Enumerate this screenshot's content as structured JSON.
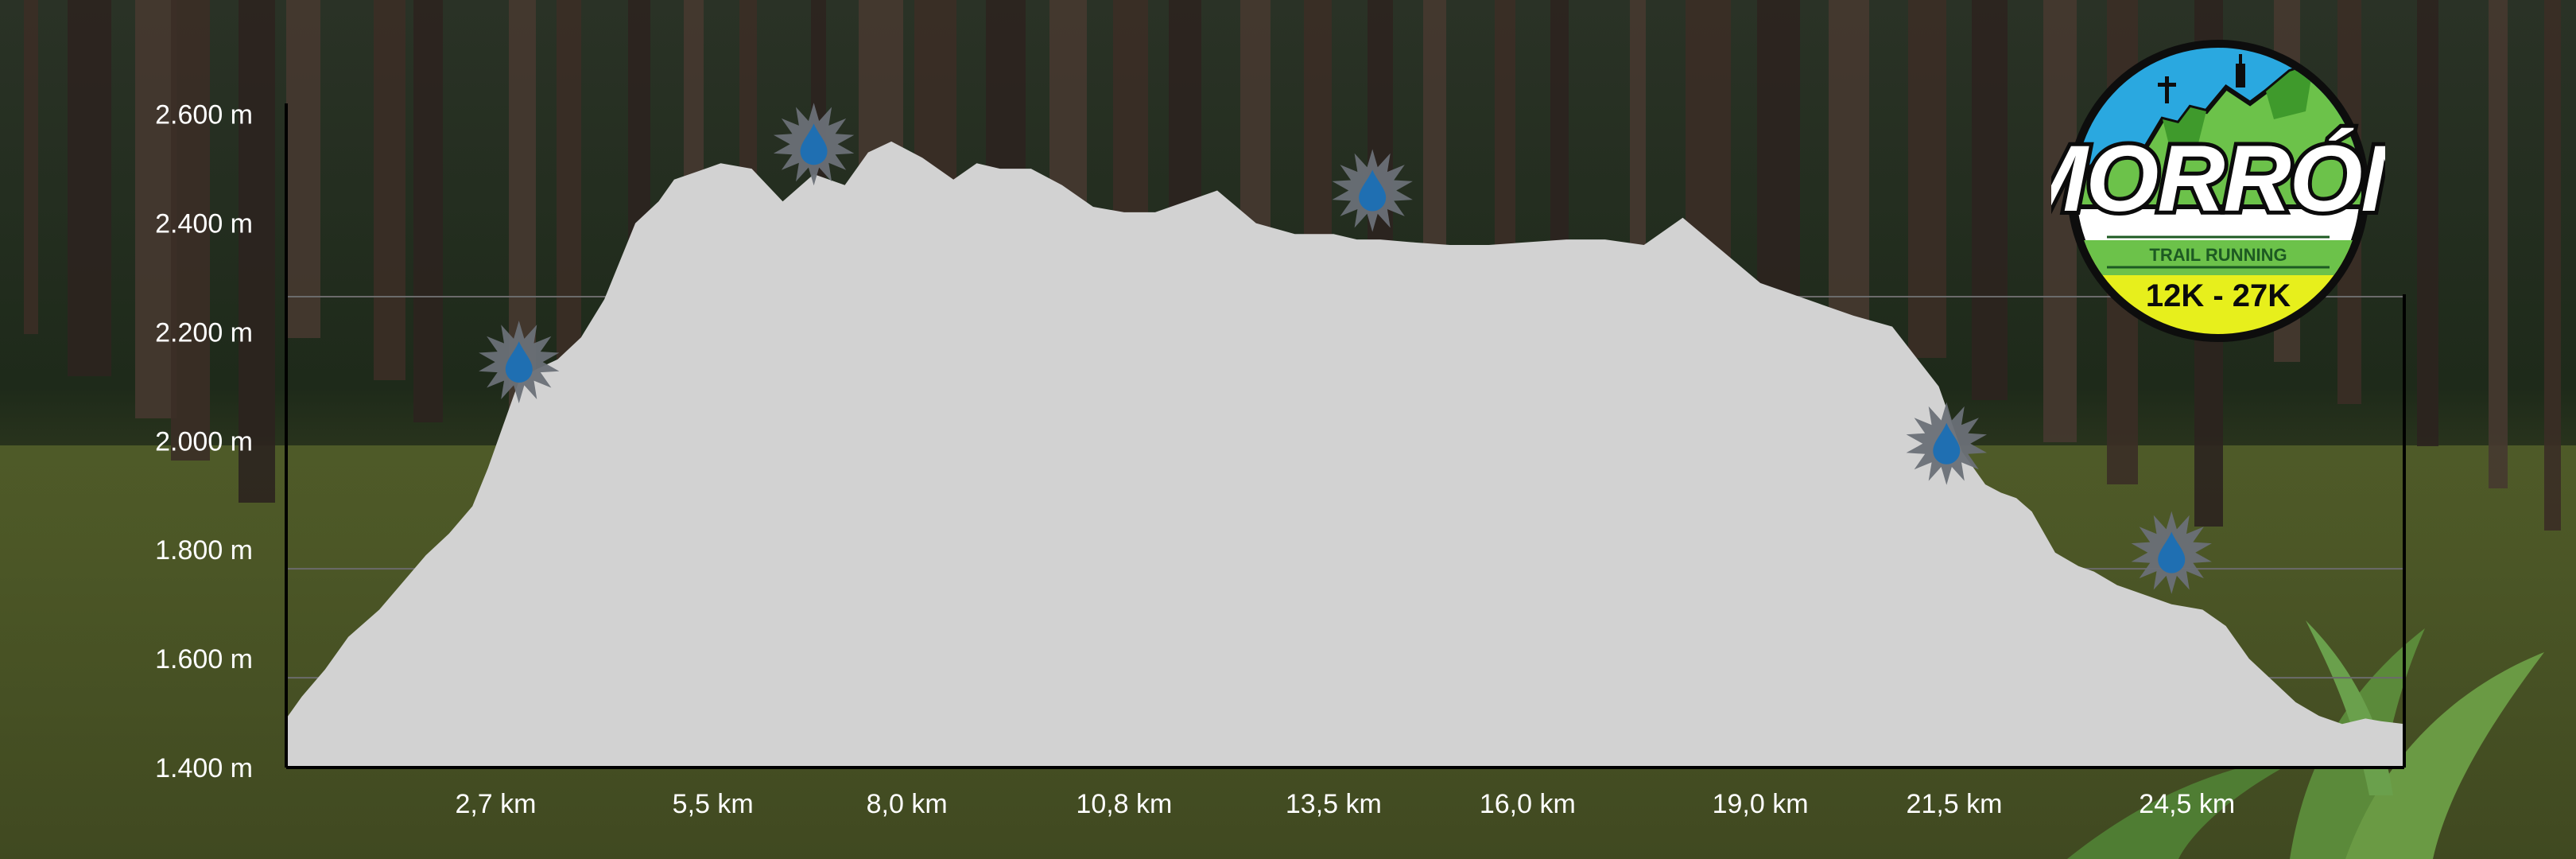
{
  "background": {
    "description_colors": {
      "sky_dark": "#1c2418",
      "moss": "#5f6d2a",
      "trunk": "#3a2c24"
    }
  },
  "colors": {
    "profile_fill": "#d2d2d2",
    "axis": "#000000",
    "gridline": "#6b6b6b",
    "label_text": "#ffffff",
    "water_drop": "#1f6fb2",
    "star_burst": "#6a7077"
  },
  "logo": {
    "title": "MORRÓN",
    "subtitle": "TRAIL RUNNING",
    "distances": "12K - 27K",
    "ring_color": "#0d0d0d",
    "sky_color": "#2aa8e0",
    "mountain_color": "#6cc24a",
    "band_color": "#e7ef1c"
  },
  "chart_data": {
    "type": "area",
    "title": "",
    "xlabel": "",
    "ylabel": "",
    "xlim": [
      0,
      27.3
    ],
    "ylim": [
      1400,
      2620
    ],
    "y_ticks": [
      1400,
      1600,
      1800,
      2000,
      2200,
      2400,
      2600
    ],
    "y_tick_labels": [
      "1.400 m",
      "1.600 m",
      "1.800 m",
      "2.000 m",
      "2.200 m",
      "2.400 m",
      "2.600 m"
    ],
    "gridlines_y": [
      1565,
      1765,
      2265
    ],
    "x_ticks": [
      2.7,
      5.5,
      8.0,
      10.8,
      13.5,
      16.0,
      19.0,
      21.5,
      24.5
    ],
    "x_tick_labels": [
      "2,7 km",
      "5,5 km",
      "8,0 km",
      "10,8 km",
      "13,5 km",
      "16,0 km",
      "19,0 km",
      "21,5 km",
      "24,5 km"
    ],
    "x": [
      0,
      0.2,
      0.5,
      0.8,
      1.0,
      1.2,
      1.5,
      1.8,
      2.1,
      2.4,
      2.6,
      2.8,
      3.0,
      3.2,
      3.5,
      3.8,
      4.1,
      4.3,
      4.5,
      4.8,
      5.0,
      5.3,
      5.6,
      6.0,
      6.4,
      6.8,
      7.2,
      7.5,
      7.8,
      8.2,
      8.6,
      8.9,
      9.2,
      9.6,
      10.0,
      10.4,
      10.8,
      11.2,
      11.6,
      12.0,
      12.5,
      13.0,
      13.5,
      13.8,
      14.1,
      14.5,
      15.0,
      15.5,
      16.0,
      16.5,
      17.0,
      17.5,
      18.0,
      18.5,
      19.0,
      19.4,
      19.8,
      20.2,
      20.7,
      21.3,
      21.6,
      21.9,
      22.1,
      22.3,
      22.5,
      22.8,
      23.1,
      23.3,
      23.6,
      23.9,
      24.3,
      24.7,
      25.0,
      25.3,
      25.6,
      25.9,
      26.2,
      26.5,
      26.8,
      27.0,
      27.3
    ],
    "y": [
      1490,
      1530,
      1580,
      1640,
      1665,
      1690,
      1740,
      1790,
      1830,
      1880,
      1950,
      2030,
      2110,
      2130,
      2150,
      2190,
      2260,
      2330,
      2400,
      2440,
      2480,
      2495,
      2510,
      2500,
      2440,
      2490,
      2470,
      2530,
      2550,
      2520,
      2480,
      2510,
      2500,
      2500,
      2470,
      2430,
      2420,
      2420,
      2440,
      2460,
      2400,
      2380,
      2380,
      2370,
      2370,
      2365,
      2360,
      2360,
      2365,
      2370,
      2370,
      2360,
      2410,
      2350,
      2290,
      2270,
      2250,
      2230,
      2210,
      2100,
      1980,
      1920,
      1905,
      1895,
      1870,
      1795,
      1770,
      1760,
      1735,
      1720,
      1700,
      1690,
      1660,
      1600,
      1560,
      1520,
      1495,
      1480,
      1490,
      1485,
      1480
    ],
    "water_stations": [
      {
        "x": 3.0,
        "y": 2145
      },
      {
        "x": 6.8,
        "y": 2545
      },
      {
        "x": 14.0,
        "y": 2460
      },
      {
        "x": 21.4,
        "y": 1995
      },
      {
        "x": 24.3,
        "y": 1795
      }
    ]
  }
}
